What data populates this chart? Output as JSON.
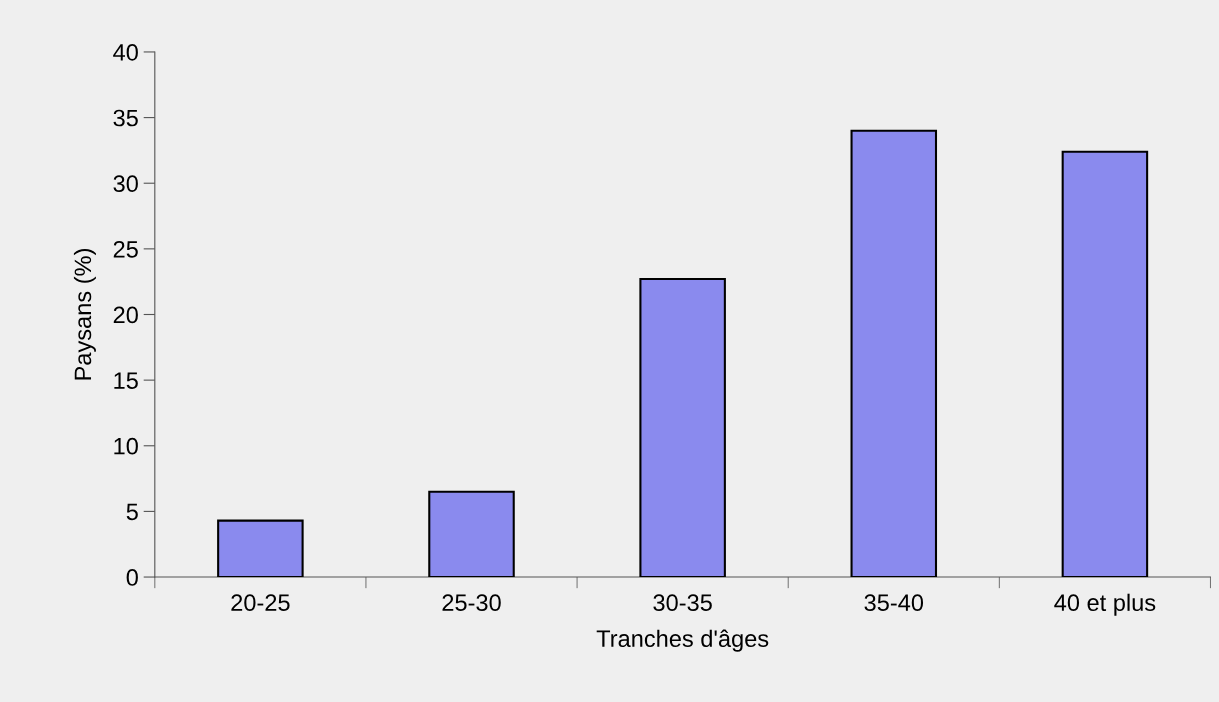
{
  "chart_data": {
    "type": "bar",
    "xlabel": "Tranches d'âges",
    "ylabel": "Paysans (%)",
    "categories": [
      "20-25",
      "25-30",
      "30-35",
      "35-40",
      "40 et plus"
    ],
    "values": [
      4.3,
      6.5,
      22.7,
      34.0,
      32.4
    ],
    "color": "#8a8aee",
    "ylim": [
      0,
      40
    ],
    "yticks": [
      0,
      5,
      10,
      15,
      20,
      25,
      30,
      35,
      40
    ],
    "grid": false
  }
}
